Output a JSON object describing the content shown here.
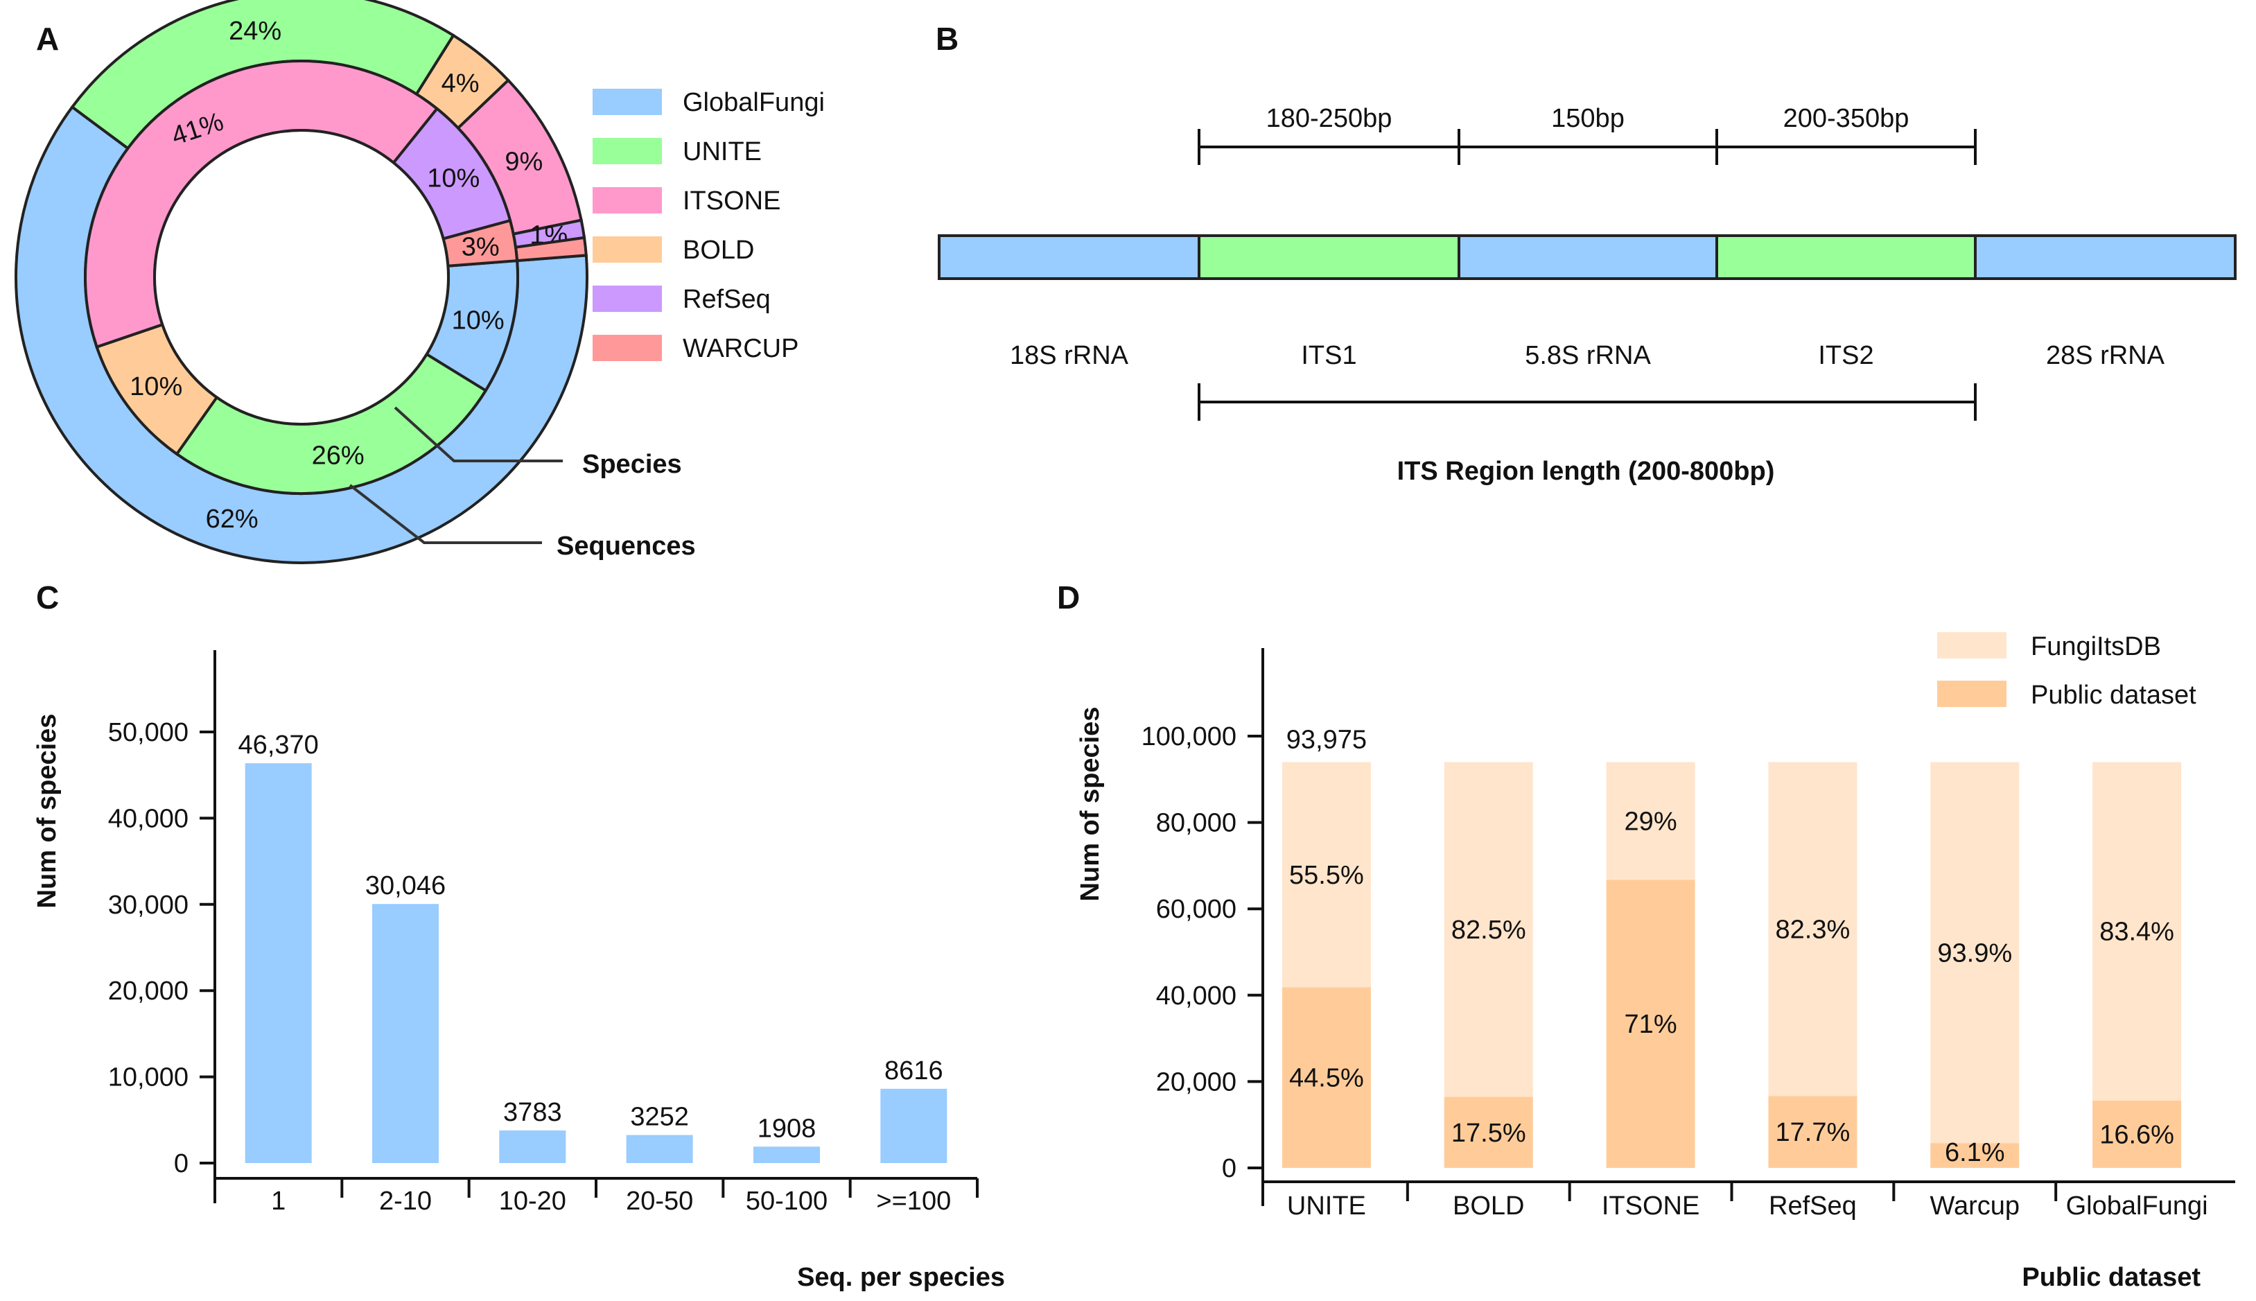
{
  "panels": {
    "a": {
      "letter": "A",
      "legend": [
        {
          "label": "GlobalFungi",
          "color": "#99ccff"
        },
        {
          "label": "UNITE",
          "color": "#99ff99"
        },
        {
          "label": "ITSONE",
          "color": "#ff99cc"
        },
        {
          "label": "BOLD",
          "color": "#ffcc99"
        },
        {
          "label": "RefSeq",
          "color": "#cc99ff"
        },
        {
          "label": "WARCUP",
          "color": "#ff9999"
        }
      ],
      "callouts": {
        "species": "Species",
        "sequences": "Sequences"
      }
    },
    "b": {
      "letter": "B",
      "region_lengths": [
        "180-250bp",
        "150bp",
        "200-350bp"
      ],
      "segments": [
        {
          "label": "18S rRNA",
          "color": "#99ccff"
        },
        {
          "label": "ITS1",
          "color": "#99ff99"
        },
        {
          "label": "5.8S rRNA",
          "color": "#99ccff"
        },
        {
          "label": "ITS2",
          "color": "#99ff99"
        },
        {
          "label": "28S rRNA",
          "color": "#99ccff"
        }
      ],
      "title": "ITS Region  length (200-800bp)"
    },
    "c": {
      "letter": "C"
    },
    "d": {
      "letter": "D"
    }
  },
  "chart_data": [
    {
      "type": "pie",
      "variant": "double-donut",
      "rings": [
        {
          "name": "Sequences",
          "slices": [
            {
              "category": "GlobalFungi",
              "value": 62,
              "label": "62%"
            },
            {
              "category": "UNITE",
              "value": 24,
              "label": "24%"
            },
            {
              "category": "BOLD",
              "value": 4,
              "label": "4%"
            },
            {
              "category": "ITSONE",
              "value": 9,
              "label": "9%"
            },
            {
              "category": "RefSeq",
              "value": 1,
              "label": "1%"
            },
            {
              "category": "WARCUP",
              "value": 1,
              "label": ""
            }
          ]
        },
        {
          "name": "Species",
          "slices": [
            {
              "category": "GlobalFungi",
              "value": 10,
              "label": "10%"
            },
            {
              "category": "UNITE",
              "value": 26,
              "label": "26%"
            },
            {
              "category": "BOLD",
              "value": 10,
              "label": "10%"
            },
            {
              "category": "ITSONE",
              "value": 41,
              "label": "41%"
            },
            {
              "category": "RefSeq",
              "value": 10,
              "label": "10%"
            },
            {
              "category": "WARCUP",
              "value": 3,
              "label": "3%"
            }
          ]
        }
      ]
    },
    {
      "type": "bar",
      "categories": [
        "1",
        "2-10",
        "10-20",
        "20-50",
        "50-100",
        ">=100"
      ],
      "values": [
        46370,
        30046,
        3783,
        3252,
        1908,
        8616
      ],
      "value_labels": [
        "46,370",
        "30,046",
        "3783",
        "3252",
        "1908",
        "8616"
      ],
      "xlabel": "Seq. per species",
      "ylabel": "Num of species",
      "ylim": [
        0,
        60000
      ],
      "yticks": [
        0,
        10000,
        20000,
        30000,
        40000,
        50000
      ],
      "ytick_labels": [
        "0",
        "10,000",
        "20,000",
        "30,000",
        "40,000",
        "50,000"
      ],
      "color": "#99ccff"
    },
    {
      "type": "bar",
      "stacked": true,
      "categories": [
        "UNITE",
        "BOLD",
        "ITSONE",
        "RefSeq",
        "Warcup",
        "GlobalFungi"
      ],
      "total": 93975,
      "total_label": "93,975",
      "series": [
        {
          "name": "Public dataset",
          "color": "#ffcc99",
          "values": [
            44.5,
            17.5,
            71,
            17.7,
            6.1,
            16.6
          ],
          "labels": [
            "44.5%",
            "17.5%",
            "71%",
            "17.7%",
            "6.1%",
            "16.6%"
          ]
        },
        {
          "name": "FungiItsDB",
          "color": "#ffe5cc",
          "values": [
            55.5,
            82.5,
            29,
            82.3,
            93.9,
            83.4
          ],
          "labels": [
            "55.5%",
            "82.5%",
            "29%",
            "82.3%",
            "93.9%",
            "83.4%"
          ]
        }
      ],
      "xlabel": "Public dataset",
      "ylabel": "Num of species",
      "ylim": [
        0,
        120000
      ],
      "yticks": [
        0,
        20000,
        40000,
        60000,
        80000,
        100000
      ],
      "ytick_labels": [
        "0",
        "20,000",
        "40,000",
        "60,000",
        "80,000",
        "100,000"
      ],
      "legend": [
        "FungiItsDB",
        "Public dataset"
      ],
      "legend_position": "top-right"
    }
  ]
}
